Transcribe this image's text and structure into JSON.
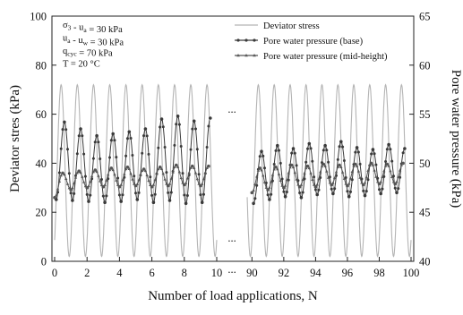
{
  "chart_data": {
    "type": "line",
    "xlabel": "Number of load applications, N",
    "ylabel_left": "Deviator stres (kPa)",
    "ylabel_right": "Pore water pressure (kPa)",
    "ylim_left": [
      0,
      100
    ],
    "ylim_right": [
      40,
      65
    ],
    "yticks_left": [
      0,
      20,
      40,
      60,
      80,
      100
    ],
    "yticks_right": [
      40,
      45,
      50,
      55,
      60,
      65
    ],
    "x_segments": [
      {
        "range": [
          0,
          10
        ],
        "ticks": [
          0,
          2,
          4,
          6,
          8,
          10
        ]
      },
      {
        "range": [
          89.7,
          100
        ],
        "ticks": [
          90,
          92,
          94,
          96,
          98,
          100
        ]
      }
    ],
    "break_marker": "...",
    "grid": false,
    "legend_position": "top-right",
    "annotations": [
      {
        "id": "confining",
        "parts": [
          [
            "σ",
            ""
          ],
          [
            "3",
            "sub"
          ],
          [
            " - u",
            ""
          ],
          [
            "a",
            "sub"
          ],
          [
            " = 30 kPa",
            ""
          ]
        ]
      },
      {
        "id": "suction",
        "parts": [
          [
            "u",
            ""
          ],
          [
            "a",
            "sub"
          ],
          [
            " - u",
            ""
          ],
          [
            "w",
            "sub"
          ],
          [
            " = 30 kPa",
            ""
          ]
        ]
      },
      {
        "id": "qcyc",
        "parts": [
          [
            "q",
            ""
          ],
          [
            "cyc",
            "sub"
          ],
          [
            " = 70 kPa",
            ""
          ]
        ]
      },
      {
        "id": "temperature",
        "parts": [
          [
            "T = 20 °C",
            ""
          ]
        ]
      }
    ],
    "series": [
      {
        "name": "Deviator stress",
        "axis": "left",
        "color": "#b4b4b4",
        "marker": "none",
        "waveform": {
          "min": 2,
          "max": 72,
          "period": 1,
          "phase_peak": 0.4
        }
      },
      {
        "name": "Pore water pressure (base)",
        "axis": "right",
        "color": "#3a3a3a",
        "marker": "circle",
        "peaks": [
          {
            "x": 0.6,
            "y": 54.2
          },
          {
            "x": 1.6,
            "y": 53.5
          },
          {
            "x": 2.6,
            "y": 52.8
          },
          {
            "x": 3.6,
            "y": 53.0
          },
          {
            "x": 4.6,
            "y": 53.2
          },
          {
            "x": 5.6,
            "y": 53.5
          },
          {
            "x": 6.6,
            "y": 54.5
          },
          {
            "x": 7.6,
            "y": 54.8
          },
          {
            "x": 8.6,
            "y": 54.3
          },
          {
            "x": 9.6,
            "y": 54.6
          },
          {
            "x": 90.6,
            "y": 51.2
          },
          {
            "x": 91.6,
            "y": 51.8
          },
          {
            "x": 92.6,
            "y": 51.5
          },
          {
            "x": 93.6,
            "y": 52.0
          },
          {
            "x": 94.6,
            "y": 51.8
          },
          {
            "x": 95.6,
            "y": 52.2
          },
          {
            "x": 96.6,
            "y": 51.6
          },
          {
            "x": 97.6,
            "y": 51.4
          },
          {
            "x": 98.6,
            "y": 51.9
          },
          {
            "x": 99.6,
            "y": 51.5
          }
        ],
        "troughs": [
          {
            "x": 0.1,
            "y": 46.3
          },
          {
            "x": 1.1,
            "y": 46.2
          },
          {
            "x": 2.1,
            "y": 46.1
          },
          {
            "x": 3.1,
            "y": 46.0
          },
          {
            "x": 4.1,
            "y": 46.1
          },
          {
            "x": 5.1,
            "y": 46.3
          },
          {
            "x": 6.1,
            "y": 46.0
          },
          {
            "x": 7.1,
            "y": 46.2
          },
          {
            "x": 8.1,
            "y": 45.9
          },
          {
            "x": 9.1,
            "y": 46.0
          },
          {
            "x": 90.1,
            "y": 45.9
          },
          {
            "x": 91.1,
            "y": 46.3
          },
          {
            "x": 92.1,
            "y": 46.6
          },
          {
            "x": 93.1,
            "y": 46.5
          },
          {
            "x": 94.1,
            "y": 46.8
          },
          {
            "x": 95.1,
            "y": 46.9
          },
          {
            "x": 96.1,
            "y": 46.6
          },
          {
            "x": 97.1,
            "y": 46.7
          },
          {
            "x": 98.1,
            "y": 46.9
          },
          {
            "x": 99.1,
            "y": 47.0
          }
        ]
      },
      {
        "name": "Pore water pressure (mid-height)",
        "axis": "right",
        "color": "#555555",
        "marker": "triangle",
        "peaks": [
          {
            "x": 0.5,
            "y": 49.0
          },
          {
            "x": 1.5,
            "y": 49.2
          },
          {
            "x": 2.5,
            "y": 49.3
          },
          {
            "x": 3.5,
            "y": 49.5
          },
          {
            "x": 4.5,
            "y": 49.6
          },
          {
            "x": 5.5,
            "y": 49.4
          },
          {
            "x": 6.5,
            "y": 49.6
          },
          {
            "x": 7.5,
            "y": 49.8
          },
          {
            "x": 8.5,
            "y": 49.7
          },
          {
            "x": 9.5,
            "y": 49.7
          },
          {
            "x": 90.5,
            "y": 49.5
          },
          {
            "x": 91.5,
            "y": 49.6
          },
          {
            "x": 92.5,
            "y": 49.8
          },
          {
            "x": 93.5,
            "y": 49.7
          },
          {
            "x": 94.5,
            "y": 49.9
          },
          {
            "x": 95.5,
            "y": 49.8
          },
          {
            "x": 96.5,
            "y": 49.9
          },
          {
            "x": 97.5,
            "y": 50.0
          },
          {
            "x": 98.5,
            "y": 49.9
          },
          {
            "x": 99.5,
            "y": 50.0
          }
        ],
        "troughs": [
          {
            "x": 0.0,
            "y": 46.5
          },
          {
            "x": 1.0,
            "y": 47.3
          },
          {
            "x": 2.0,
            "y": 47.5
          },
          {
            "x": 3.0,
            "y": 47.6
          },
          {
            "x": 4.0,
            "y": 47.6
          },
          {
            "x": 5.0,
            "y": 47.7
          },
          {
            "x": 6.0,
            "y": 47.6
          },
          {
            "x": 7.0,
            "y": 47.7
          },
          {
            "x": 8.0,
            "y": 47.8
          },
          {
            "x": 9.0,
            "y": 47.7
          },
          {
            "x": 90.0,
            "y": 47.0
          },
          {
            "x": 91.0,
            "y": 47.3
          },
          {
            "x": 92.0,
            "y": 47.5
          },
          {
            "x": 93.0,
            "y": 47.6
          },
          {
            "x": 94.0,
            "y": 47.6
          },
          {
            "x": 95.0,
            "y": 47.8
          },
          {
            "x": 96.0,
            "y": 47.7
          },
          {
            "x": 97.0,
            "y": 47.8
          },
          {
            "x": 98.0,
            "y": 47.9
          },
          {
            "x": 99.0,
            "y": 47.9
          }
        ]
      }
    ]
  }
}
